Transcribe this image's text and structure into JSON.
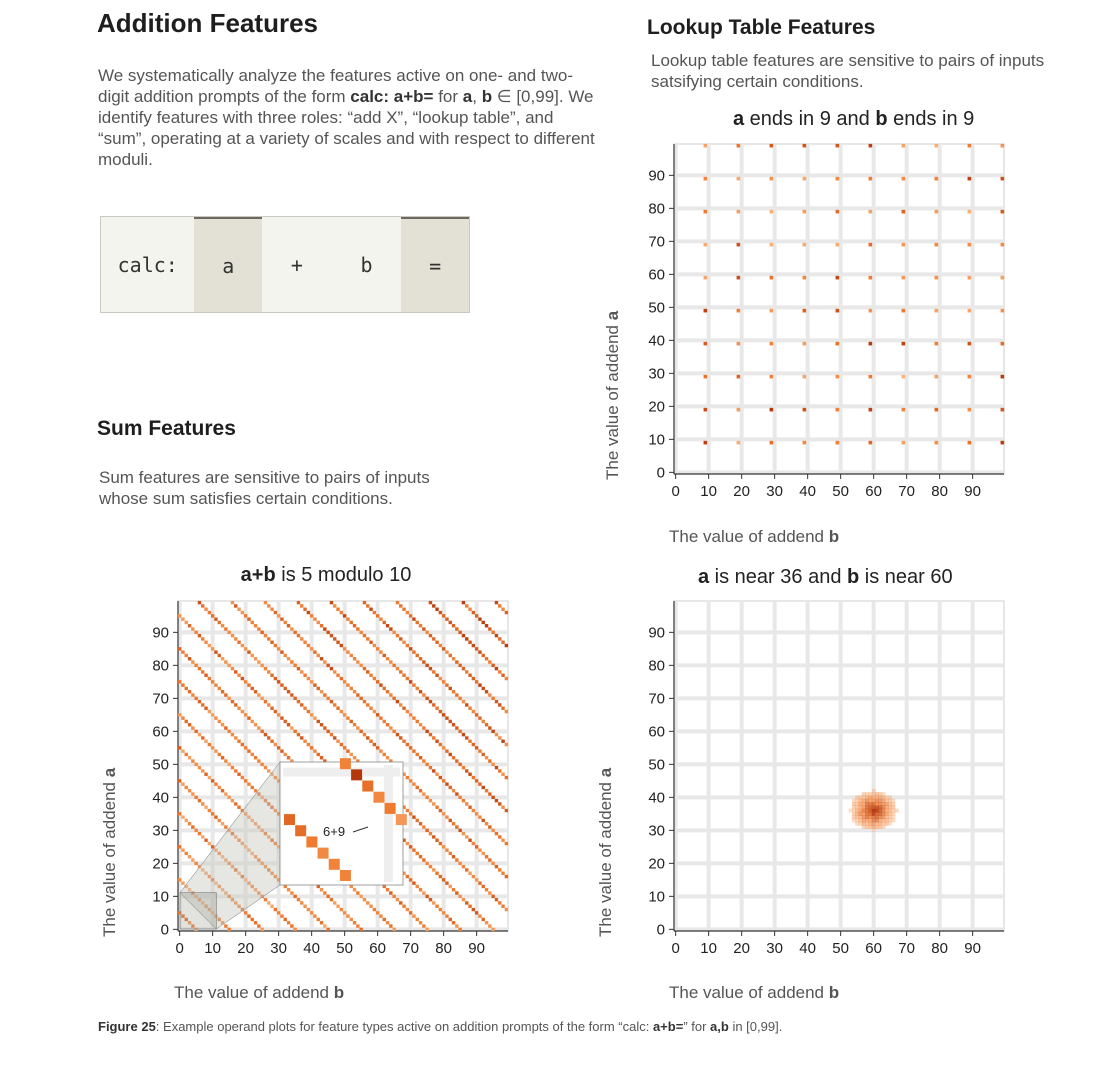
{
  "sections": {
    "addition_title": "Addition Features",
    "addition_text_1": "We systematically analyze the features active on one- and two-digit addition prompts of the form ",
    "addition_prompt": "calc: a+b=",
    "addition_text_2": " for ",
    "addition_a": "a",
    "addition_comma": ", ",
    "addition_b": "b",
    "addition_text_3": " ∈ [0,99]. We identify features with three roles: “add X”, “lookup table”, and “sum”, operating at a variety of scales and with respect to different moduli.",
    "lookup_title": "Lookup Table Features",
    "lookup_text": "Lookup table features are sensitive to pairs of inputs satsifying certain conditions.",
    "sum_title": "Sum Features",
    "sum_text": "Sum features are sensitive to pairs of inputs whose sum satisfies certain conditions."
  },
  "tokens": [
    {
      "label": "calc:",
      "highlight": false
    },
    {
      "label": "a",
      "highlight": true
    },
    {
      "label": "+",
      "highlight": false
    },
    {
      "label": "b",
      "highlight": false
    },
    {
      "label": "=",
      "highlight": true
    }
  ],
  "axis_text": {
    "xlabel_prefix": "The value of addend ",
    "xlabel_bold": "b",
    "ylabel_prefix": "The value of addend ",
    "ylabel_bold": "a"
  },
  "chart_titles": {
    "lookup_bold_a": "a",
    "lookup_mid": " ends in 9 and ",
    "lookup_bold_b": "b",
    "lookup_end": " ends in 9",
    "sum_bold": "a+b",
    "sum_rest": " is 5 modulo 10",
    "near_bold_a": "a",
    "near_mid": " is near 36 and ",
    "near_bold_b": "b",
    "near_end": " is near 60"
  },
  "inset_annotation": "6+9",
  "caption": {
    "label": "Figure 25",
    "text_1": ": Example operand plots for feature types active on addition prompts of the form “calc: ",
    "bold_1": "a+b=",
    "text_2": "” for ",
    "bold_2": "a,b",
    "text_3": " in [0,99]."
  },
  "colors": {
    "orange_light": "#f9b27a",
    "orange_mid": "#f07a2e",
    "orange_dark": "#b5380c",
    "grid": "#e8e8e8"
  },
  "chart_data": [
    {
      "type": "heatmap",
      "title": "a ends in 9 and b ends in 9",
      "xlabel": "The value of addend b",
      "ylabel": "The value of addend a",
      "xlim": [
        0,
        99
      ],
      "ylim": [
        0,
        99
      ],
      "xticks": [
        0,
        10,
        20,
        30,
        40,
        50,
        60,
        70,
        80,
        90
      ],
      "yticks": [
        0,
        10,
        20,
        30,
        40,
        50,
        60,
        70,
        80,
        90
      ],
      "active_a": [
        9,
        19,
        29,
        39,
        49,
        59,
        69,
        79,
        89,
        99
      ],
      "active_b": [
        9,
        19,
        29,
        39,
        49,
        59,
        69,
        79,
        89,
        99
      ],
      "rule": "a mod 10 = 9 and b mod 10 = 9"
    },
    {
      "type": "heatmap",
      "title": "a+b is 5 modulo 10",
      "xlabel": "The value of addend b",
      "ylabel": "The value of addend a",
      "xlim": [
        0,
        99
      ],
      "ylim": [
        0,
        99
      ],
      "xticks": [
        0,
        10,
        20,
        30,
        40,
        50,
        60,
        70,
        80,
        90
      ],
      "yticks": [
        0,
        10,
        20,
        30,
        40,
        50,
        60,
        70,
        80,
        90
      ],
      "rule": "(a + b) mod 10 = 5",
      "inset": {
        "a_range": [
          0,
          10
        ],
        "b_range": [
          0,
          10
        ],
        "annotation": "6+9",
        "highlight_a": 9,
        "highlight_b": 6
      }
    },
    {
      "type": "heatmap",
      "title": "a is near 36 and b is near 60",
      "xlabel": "The value of addend b",
      "ylabel": "The value of addend a",
      "xlim": [
        0,
        99
      ],
      "ylim": [
        0,
        99
      ],
      "xticks": [
        0,
        10,
        20,
        30,
        40,
        50,
        60,
        70,
        80,
        90
      ],
      "yticks": [
        0,
        10,
        20,
        30,
        40,
        50,
        60,
        70,
        80,
        90
      ],
      "center_a": 36,
      "center_b": 60,
      "spread_a": 6,
      "spread_b": 7
    }
  ]
}
